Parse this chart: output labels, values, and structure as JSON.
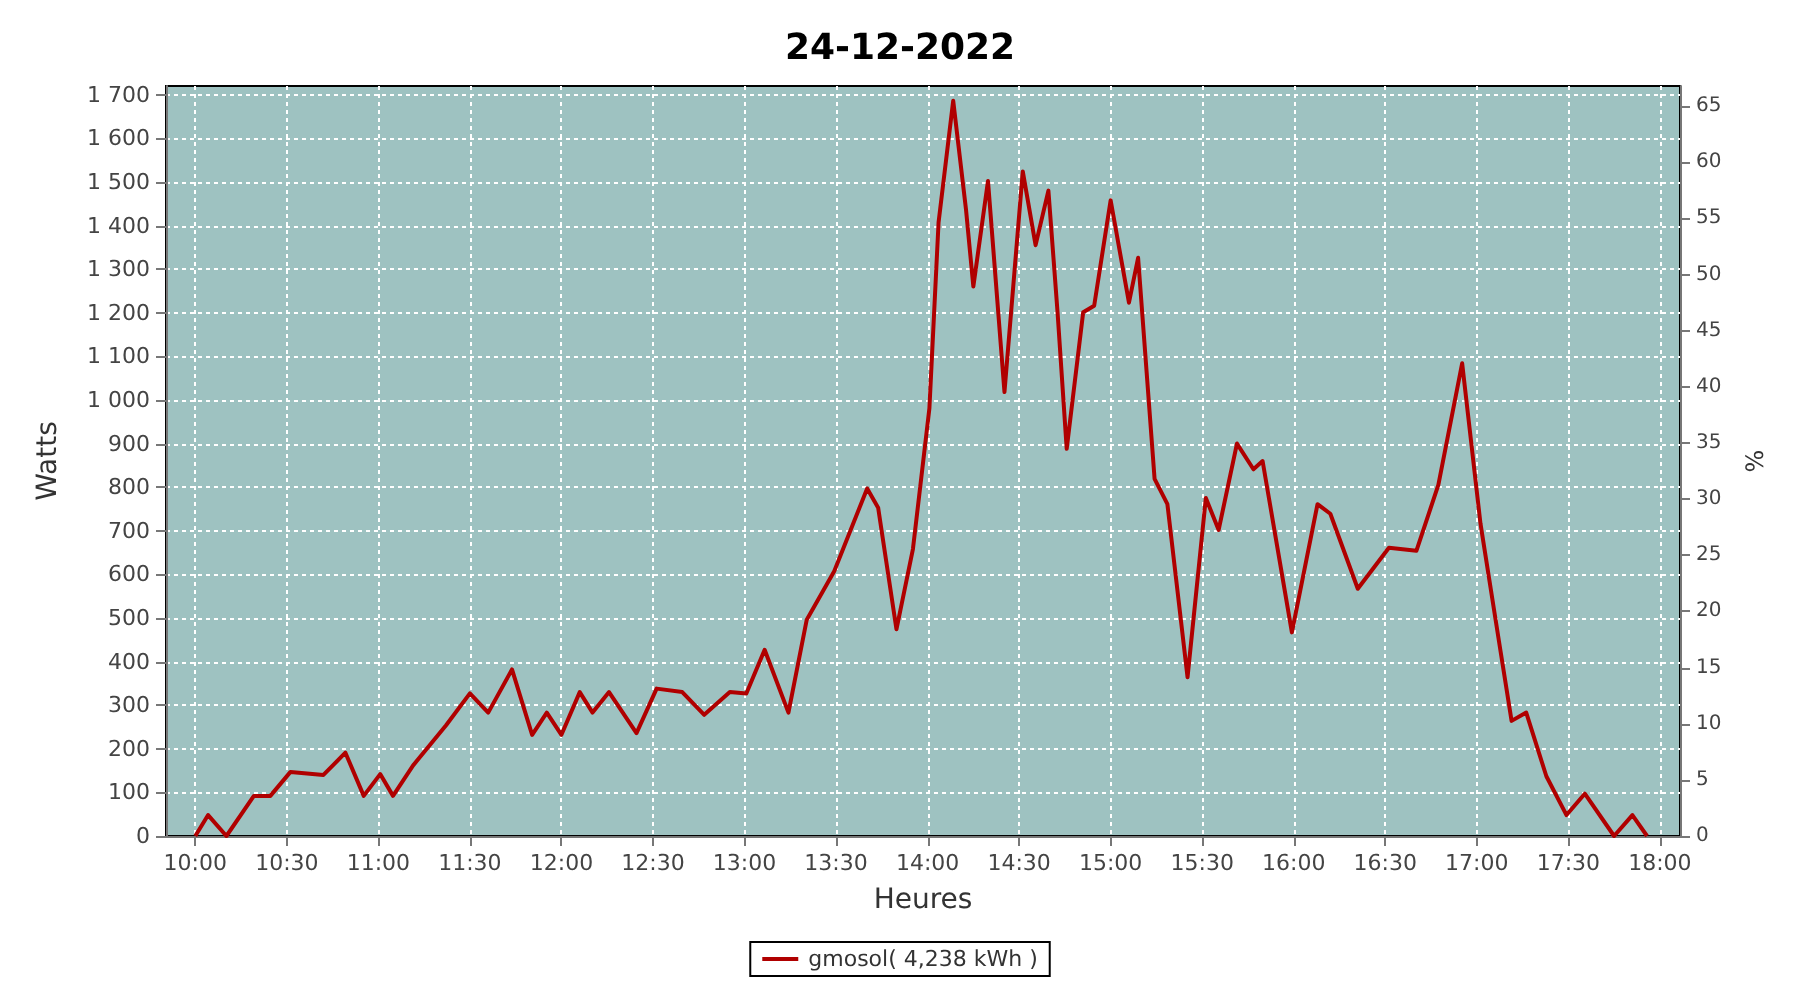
{
  "chart_data": {
    "type": "line",
    "title": "24-12-2022",
    "xlabel": "Heures",
    "ylabel": "Watts",
    "y2label": "%",
    "xlim": [
      9.84,
      18.11
    ],
    "xticks": [
      {
        "value": 10,
        "label": "10:00"
      },
      {
        "value": 10.5,
        "label": "10:30"
      },
      {
        "value": 11,
        "label": "11:00"
      },
      {
        "value": 11.5,
        "label": "11:30"
      },
      {
        "value": 12,
        "label": "12:00"
      },
      {
        "value": 12.5,
        "label": "12:30"
      },
      {
        "value": 13,
        "label": "13:00"
      },
      {
        "value": 13.5,
        "label": "13:30"
      },
      {
        "value": 14,
        "label": "14:00"
      },
      {
        "value": 14.5,
        "label": "14:30"
      },
      {
        "value": 15,
        "label": "15:00"
      },
      {
        "value": 15.5,
        "label": "15:30"
      },
      {
        "value": 16,
        "label": "16:00"
      },
      {
        "value": 16.5,
        "label": "16:30"
      },
      {
        "value": 17,
        "label": "17:00"
      },
      {
        "value": 17.5,
        "label": "17:30"
      },
      {
        "value": 18,
        "label": "18:00"
      }
    ],
    "ylim": [
      0,
      1720
    ],
    "yticks": [
      0,
      100,
      200,
      300,
      400,
      500,
      600,
      700,
      800,
      900,
      {
        "value": 1000,
        "label": "1 000"
      },
      {
        "value": 1100,
        "label": "1 100"
      },
      {
        "value": 1200,
        "label": "1 200"
      },
      {
        "value": 1300,
        "label": "1 300"
      },
      {
        "value": 1400,
        "label": "1 400"
      },
      {
        "value": 1500,
        "label": "1 500"
      },
      {
        "value": 1600,
        "label": "1 600"
      },
      {
        "value": 1700,
        "label": "1 700"
      }
    ],
    "y2lim": [
      0,
      66.8
    ],
    "y2ticks": [
      0,
      5,
      10,
      15,
      20,
      25,
      30,
      35,
      40,
      45,
      50,
      55,
      60,
      65
    ],
    "grid": true,
    "legend": "bottom",
    "marker": "none",
    "line_style": "solid",
    "series": [
      {
        "name": "gmosol( 4,238 kWh )",
        "color": "#b00000",
        "x": [
          10.0,
          10.07,
          10.17,
          10.32,
          10.41,
          10.52,
          10.7,
          10.82,
          10.92,
          11.01,
          11.08,
          11.19,
          11.37,
          11.5,
          11.6,
          11.73,
          11.84,
          11.92,
          12.0,
          12.1,
          12.17,
          12.26,
          12.41,
          12.52,
          12.66,
          12.78,
          12.92,
          13.01,
          13.11,
          13.24,
          13.34,
          13.49,
          13.67,
          13.73,
          13.83,
          13.92,
          14.01,
          14.06,
          14.14,
          14.21,
          14.25,
          14.33,
          14.42,
          14.52,
          14.59,
          14.66,
          14.71,
          14.76,
          14.85,
          14.91,
          15.0,
          15.1,
          15.15,
          15.24,
          15.31,
          15.42,
          15.52,
          15.59,
          15.69,
          15.78,
          15.83,
          15.99,
          16.13,
          16.2,
          16.35,
          16.52,
          16.67,
          16.79,
          16.92,
          17.02,
          17.13,
          17.19,
          17.27,
          17.38,
          17.49,
          17.59,
          17.75,
          17.85,
          17.93
        ],
        "values": [
          0,
          48,
          0,
          92,
          92,
          147,
          140,
          191,
          92,
          142,
          92,
          162,
          254,
          327,
          283,
          382,
          232,
          283,
          232,
          330,
          283,
          330,
          236,
          338,
          330,
          278,
          330,
          327,
          427,
          283,
          496,
          607,
          797,
          753,
          474,
          658,
          981,
          1407,
          1686,
          1436,
          1260,
          1502,
          1018,
          1524,
          1355,
          1480,
          1201,
          888,
          1201,
          1216,
          1458,
          1223,
          1326,
          819,
          761,
          364,
          775,
          702,
          900,
          841,
          860,
          467,
          761,
          739,
          567,
          661,
          654,
          805,
          1084,
          717,
          423,
          264,
          283,
          137,
          48,
          97,
          0,
          48,
          0
        ]
      }
    ]
  }
}
